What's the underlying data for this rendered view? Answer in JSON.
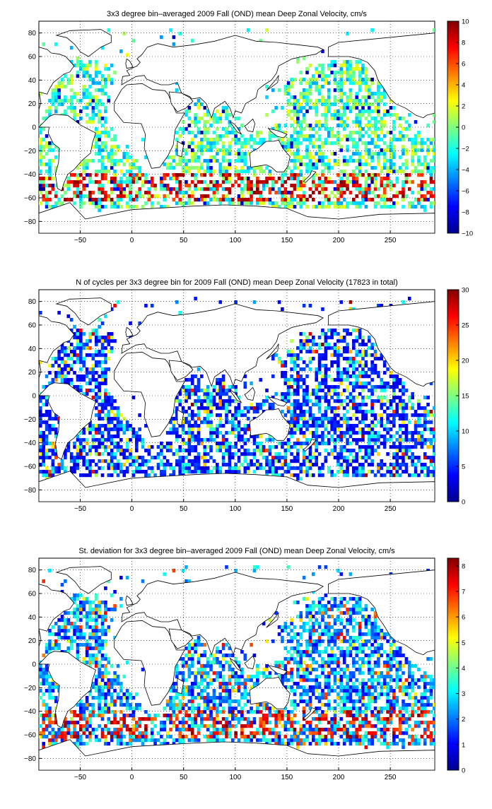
{
  "figure": {
    "panels": [
      {
        "title": "3x3 degree bin–averaged 2009 Fall (OND) mean Deep Zonal Velocity, cm/s",
        "colorbar": {
          "min": -10,
          "max": 10,
          "ticks": [
            "10",
            "8",
            "6",
            "4",
            "2",
            "0",
            "−2",
            "−4",
            "−6",
            "−8",
            "−10"
          ]
        }
      },
      {
        "title": "N of cycles per 3x3 degree bin for 2009 Fall (OND) mean Deep Zonal Velocity (17823 in total)",
        "colorbar": {
          "min": 0,
          "max": 30,
          "ticks": [
            "30",
            "25",
            "20",
            "15",
            "10",
            "5",
            "0"
          ]
        }
      },
      {
        "title": "St. deviation for 3x3 degree bin–averaged 2009 Fall (OND) mean Deep Zonal Velocity, cm/s",
        "colorbar": {
          "min": 0,
          "max": 8.3,
          "ticks": [
            "8",
            "7",
            "6",
            "5",
            "4",
            "3",
            "2",
            "1",
            "0"
          ]
        }
      }
    ],
    "axes": {
      "xlim": [
        -90,
        293
      ],
      "ylim": [
        -90,
        90
      ],
      "x_ticks": [
        "−50",
        "0",
        "50",
        "100",
        "150",
        "200",
        "250"
      ],
      "y_ticks": [
        "80",
        "60",
        "40",
        "20",
        "0",
        "−20",
        "−40",
        "−60",
        "−80"
      ],
      "grid": "dotted"
    },
    "colormap": "jet"
  }
}
